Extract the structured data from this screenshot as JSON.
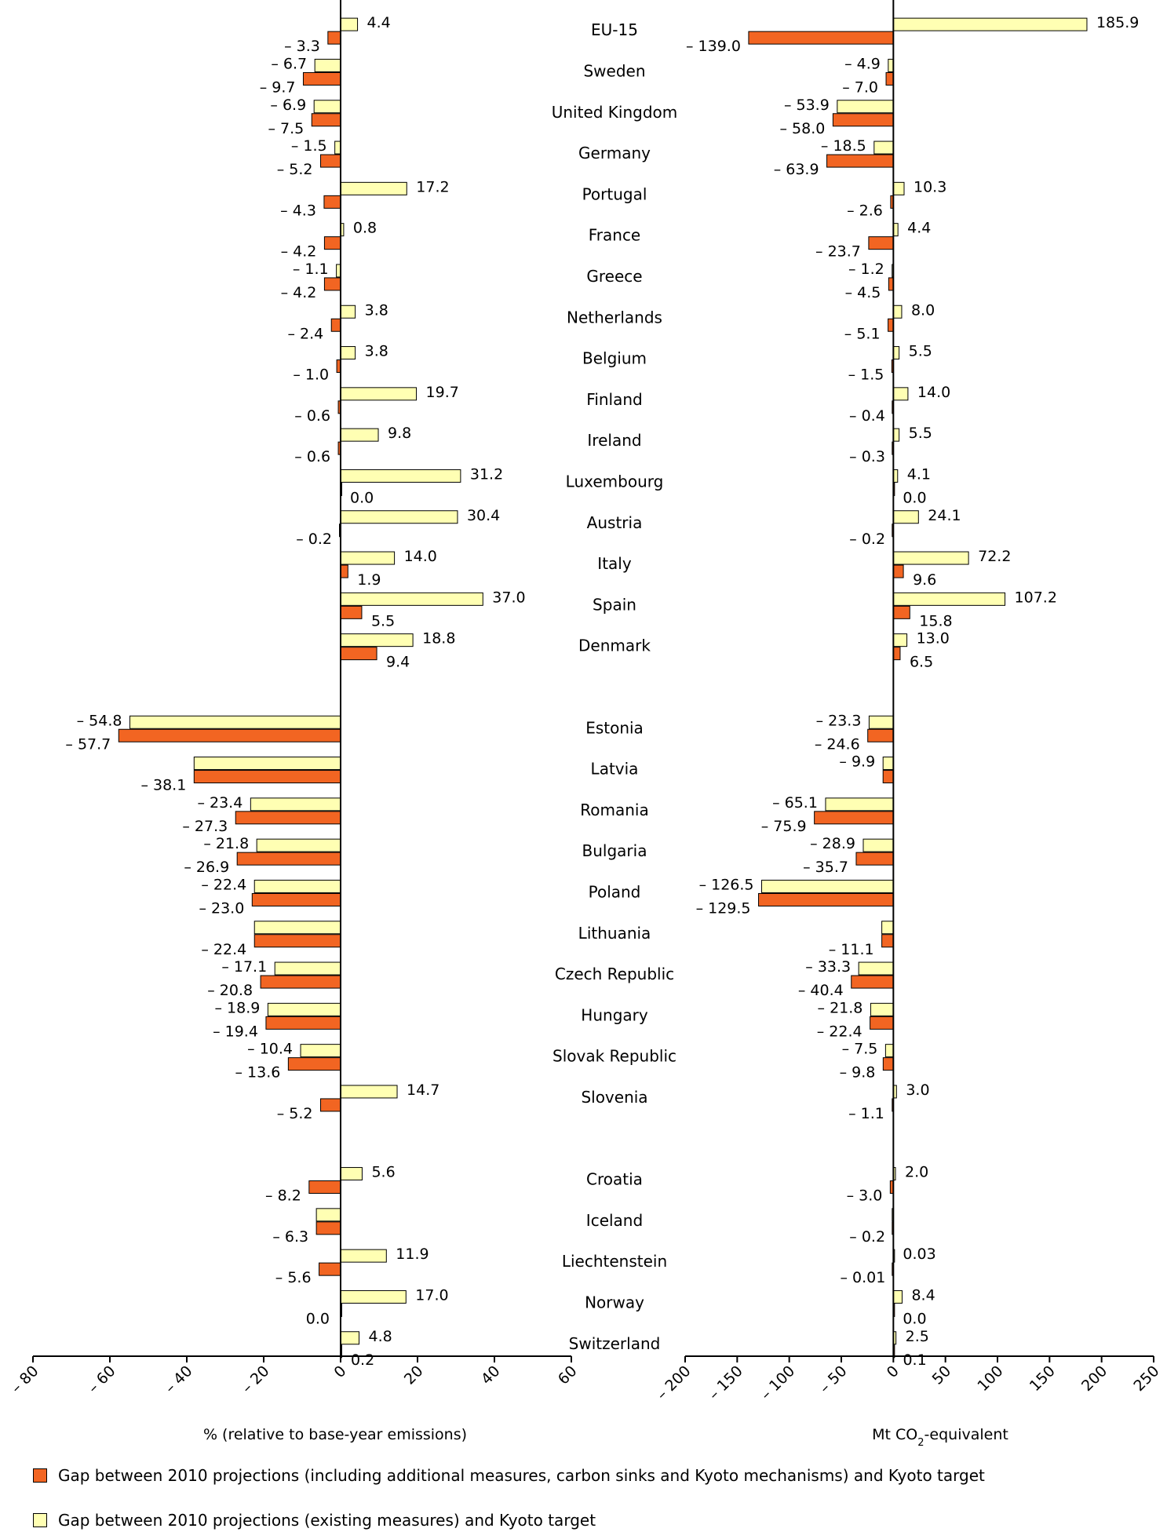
{
  "chart_data": {
    "type": "bar",
    "orientation": "horizontal",
    "categories": [
      "EU-15",
      "Sweden",
      "United Kingdom",
      "Germany",
      "Portugal",
      "France",
      "Greece",
      "Netherlands",
      "Belgium",
      "Finland",
      "Ireland",
      "Luxembourg",
      "Austria",
      "Italy",
      "Spain",
      "Denmark",
      "Estonia",
      "Latvia",
      "Romania",
      "Bulgaria",
      "Poland",
      "Lithuania",
      "Czech Republic",
      "Hungary",
      "Slovak Republic",
      "Slovenia",
      "Croatia",
      "Iceland",
      "Liechtenstein",
      "Norway",
      "Switzerland"
    ],
    "group_breaks_after": [
      "Denmark",
      "Slovenia"
    ],
    "panels": [
      {
        "id": "percent",
        "xlabel": "% (relative to base-year emissions)",
        "xlim": [
          -80,
          60
        ],
        "xticks": [
          -80,
          -60,
          -40,
          -20,
          0,
          20,
          40,
          60
        ],
        "tick_labels": [
          "– 80",
          "– 60",
          "– 40",
          "– 20",
          "0",
          "20",
          "40",
          "60"
        ],
        "series": [
          {
            "key": "existing",
            "values": [
              4.4,
              -6.7,
              -6.9,
              -1.5,
              17.2,
              0.8,
              -1.1,
              3.8,
              3.8,
              19.7,
              9.8,
              31.2,
              30.4,
              14.0,
              37.0,
              18.8,
              -54.8,
              -38.1,
              -23.4,
              -21.8,
              -22.4,
              -22.4,
              -17.1,
              -18.9,
              -10.4,
              14.7,
              5.6,
              -6.3,
              11.9,
              17.0,
              4.8
            ],
            "labels": [
              "4.4",
              "– 6.7",
              "– 6.9",
              "– 1.5",
              "17.2",
              "0.8",
              "– 1.1",
              "3.8",
              "3.8",
              "19.7",
              "9.8",
              "31.2",
              "30.4",
              "14.0",
              "37.0",
              "18.8",
              "– 54.8",
              "",
              "– 23.4",
              "– 21.8",
              "– 22.4",
              "",
              "– 17.1",
              "– 18.9",
              "– 10.4",
              "14.7",
              "5.6",
              "",
              "11.9",
              "17.0",
              "4.8"
            ]
          },
          {
            "key": "additional",
            "values": [
              -3.3,
              -9.7,
              -7.5,
              -5.2,
              -4.3,
              -4.2,
              -4.2,
              -2.4,
              -1.0,
              -0.6,
              -0.6,
              0.0,
              -0.2,
              1.9,
              5.5,
              9.4,
              -57.7,
              -38.1,
              -27.3,
              -26.9,
              -23.0,
              -22.4,
              -20.8,
              -19.4,
              -13.6,
              -5.2,
              -8.2,
              -6.3,
              -5.6,
              0.0,
              0.2
            ],
            "labels": [
              "– 3.3",
              "– 9.7",
              "– 7.5",
              "– 5.2",
              "– 4.3",
              "– 4.2",
              "– 4.2",
              "– 2.4",
              "– 1.0",
              "– 0.6",
              "– 0.6",
              "0.0",
              "– 0.2",
              "1.9",
              "5.5",
              "9.4",
              "– 57.7",
              "– 38.1",
              "– 27.3",
              "– 26.9",
              "– 23.0",
              "– 22.4",
              "– 20.8",
              "– 19.4",
              "– 13.6",
              "– 5.2",
              "– 8.2",
              "– 6.3",
              "– 5.6",
              "0.0",
              "0.2"
            ]
          }
        ]
      },
      {
        "id": "mt",
        "xlabel_main": "Mt CO",
        "xlabel_sub": "2",
        "xlabel_tail": "-equivalent",
        "xlim": [
          -200,
          250
        ],
        "xticks": [
          -200,
          -150,
          -100,
          -50,
          0,
          50,
          100,
          150,
          200,
          250
        ],
        "tick_labels": [
          "– 200",
          "– 150",
          "– 100",
          "– 50",
          "0",
          "50",
          "100",
          "150",
          "200",
          "250"
        ],
        "series": [
          {
            "key": "existing",
            "values": [
              185.9,
              -4.9,
              -53.9,
              -18.5,
              10.3,
              4.4,
              -1.2,
              8.0,
              5.5,
              14.0,
              5.5,
              4.1,
              24.1,
              72.2,
              107.2,
              13.0,
              -23.3,
              -9.9,
              -65.1,
              -28.9,
              -126.5,
              -11.1,
              -33.3,
              -21.8,
              -7.5,
              3.0,
              2.0,
              -0.2,
              0.03,
              8.4,
              2.5
            ],
            "labels": [
              "185.9",
              "– 4.9",
              "– 53.9",
              "– 18.5",
              "10.3",
              "4.4",
              "– 1.2",
              "8.0",
              "5.5",
              "14.0",
              "5.5",
              "4.1",
              "24.1",
              "72.2",
              "107.2",
              "13.0",
              "– 23.3",
              "– 9.9",
              "– 65.1",
              "– 28.9",
              "– 126.5",
              "",
              "– 33.3",
              "– 21.8",
              "– 7.5",
              "3.0",
              "2.0",
              "",
              "0.03",
              "8.4",
              "2.5"
            ]
          },
          {
            "key": "additional",
            "values": [
              -139.0,
              -7.0,
              -58.0,
              -63.9,
              -2.6,
              -23.7,
              -4.5,
              -5.1,
              -1.5,
              -0.4,
              -0.3,
              0.0,
              -0.2,
              9.6,
              15.8,
              6.5,
              -24.6,
              -9.9,
              -75.9,
              -35.7,
              -129.5,
              -11.1,
              -40.4,
              -22.4,
              -9.8,
              -1.1,
              -3.0,
              -0.2,
              -0.01,
              0.0,
              0.1
            ],
            "labels": [
              "– 139.0",
              "– 7.0",
              "– 58.0",
              "– 63.9",
              "– 2.6",
              "– 23.7",
              "– 4.5",
              "– 5.1",
              "– 1.5",
              "– 0.4",
              "– 0.3",
              "0.0",
              "– 0.2",
              "9.6",
              "15.8",
              "6.5",
              "– 24.6",
              "",
              "– 75.9",
              "– 35.7",
              "– 129.5",
              "– 11.1",
              "– 40.4",
              "– 22.4",
              "– 9.8",
              "– 1.1",
              "– 3.0",
              "– 0.2",
              "– 0.01",
              "0.0",
              "0.1"
            ]
          }
        ]
      }
    ],
    "legend": [
      {
        "key": "additional",
        "label": "Gap between 2010 projections (including additional measures, carbon sinks and Kyoto mechanisms) and Kyoto target",
        "color": "#F26522"
      },
      {
        "key": "existing",
        "label": "Gap between 2010 projections (existing measures) and Kyoto target",
        "color": "#FFFFB3"
      }
    ],
    "grid": false,
    "legend_position": "bottom"
  }
}
